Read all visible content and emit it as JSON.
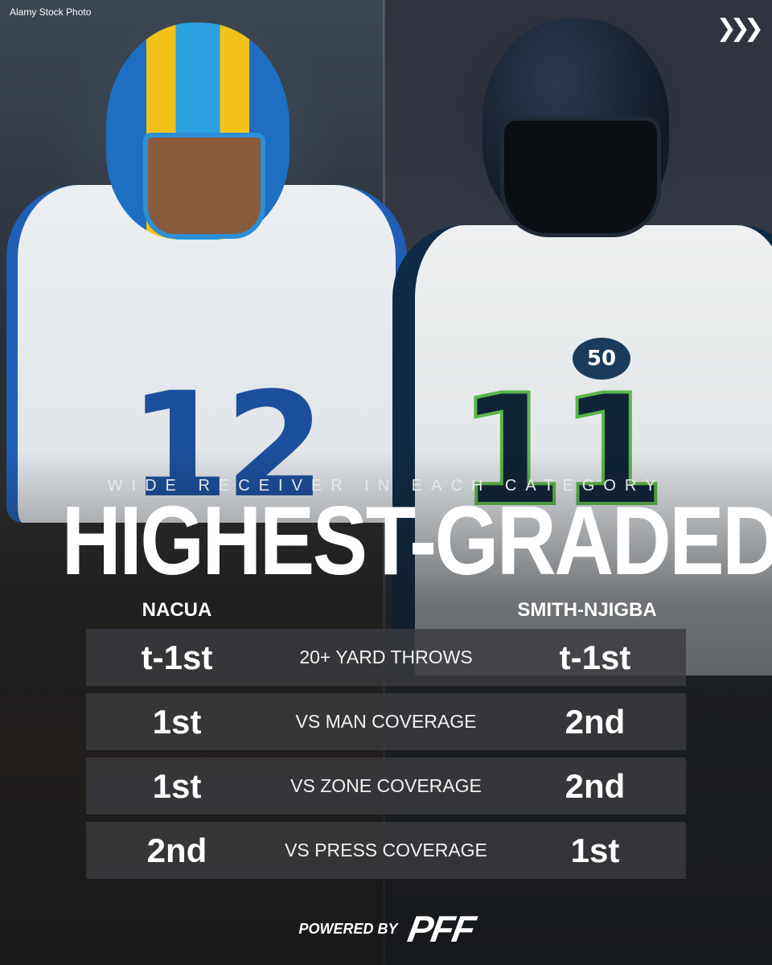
{
  "credit": "Alamy Stock Photo",
  "subtitle": "WIDE RECEIVER IN EACH CATEGORY",
  "title": "HIGHEST-GRADED",
  "players": {
    "left": "NACUA",
    "right": "SMITH-NJIGBA"
  },
  "jersey_numbers": {
    "left": "12",
    "right": "11"
  },
  "patch_text": "50",
  "rows": [
    {
      "left": "t-1st",
      "category": "20+ YARD THROWS",
      "right": "t-1st"
    },
    {
      "left": "1st",
      "category": "VS MAN COVERAGE",
      "right": "2nd"
    },
    {
      "left": "1st",
      "category": "VS ZONE COVERAGE",
      "right": "2nd"
    },
    {
      "left": "2nd",
      "category": "VS PRESS COVERAGE",
      "right": "1st"
    }
  ],
  "footer": {
    "powered_by": "POWERED BY",
    "logo_text": "PFF"
  },
  "icons": {
    "next": "triple-chevron-right-icon"
  },
  "colors": {
    "rams_blue": "#1f5fb4",
    "rams_gold": "#f2c21a",
    "seahawks_navy": "#0e2a44",
    "seahawks_green": "#5ab54a",
    "row_bg": "#3a3c40"
  }
}
